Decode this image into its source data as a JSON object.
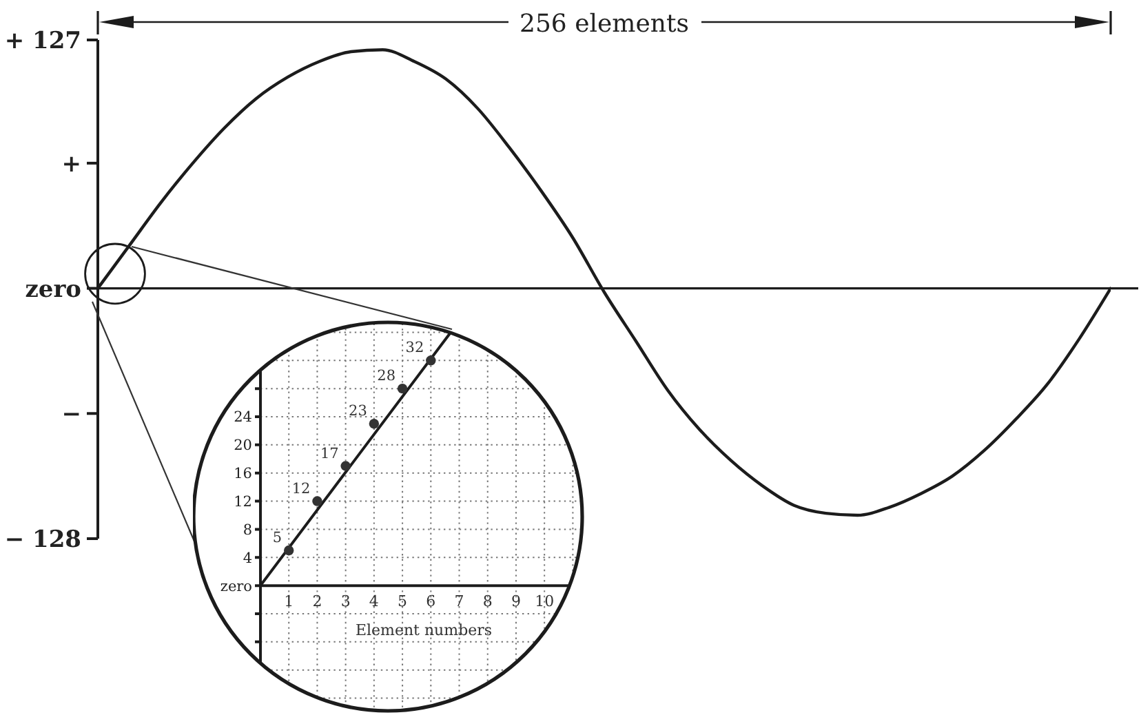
{
  "chart_data": [
    {
      "type": "line",
      "annotations": [
        "256 elements"
      ],
      "categories": [
        null,
        null,
        null,
        null,
        null,
        null,
        null,
        null,
        null,
        null,
        null,
        null,
        null,
        null,
        null,
        null,
        null,
        null,
        null,
        null,
        null,
        null,
        null,
        null,
        null,
        null,
        null,
        null,
        null,
        null,
        null,
        null,
        null
      ],
      "series": [
        {
          "color": "#1c1c1c",
          "values": [
            0,
            22,
            44,
            64,
            82,
            97,
            108,
            116,
            121,
            122,
            116,
            107,
            92,
            72,
            50,
            26,
            -2,
            -27,
            -52,
            -72,
            -88,
            -101,
            -111,
            -115,
            -116,
            -112,
            -105,
            -96,
            -83,
            -67,
            -49,
            -26,
            0
          ]
        }
      ],
      "ylim": [
        -128,
        127
      ],
      "yticks": [
        {
          "value": 127,
          "label": "+ 127"
        },
        {
          "value": 64,
          "label": "+"
        },
        {
          "value": 0,
          "label": "zero"
        },
        {
          "value": -64,
          "label": "−"
        },
        {
          "value": -128,
          "label": "− 128"
        }
      ],
      "ref_lines": [
        {
          "axis": "y",
          "value": 0,
          "color": "#1c1c1c"
        }
      ],
      "tick_labels": "y"
    },
    {
      "type": "line",
      "xlabel": "Element numbers",
      "xlim": [
        0,
        11.5
      ],
      "xticks": [
        1,
        2,
        3,
        4,
        5,
        6,
        7,
        8,
        9,
        10,
        {
          "value": 11,
          "label": null
        }
      ],
      "ylim": [
        -18,
        38
      ],
      "yticks": [
        {
          "value": -16,
          "label": null
        },
        {
          "value": -12,
          "label": null
        },
        {
          "value": -8,
          "label": null
        },
        {
          "value": -4,
          "label": null
        },
        {
          "value": 0,
          "label": "zero"
        },
        4,
        8,
        12,
        16,
        20,
        24,
        {
          "value": 28,
          "label": null
        },
        {
          "value": 32,
          "label": null
        },
        {
          "value": 36,
          "label": null
        }
      ],
      "grid": true,
      "series": [
        {
          "color": "#1c1c1c",
          "x": [
            0,
            6.7
          ],
          "values": [
            0,
            36
          ]
        },
        {
          "type": "scatter",
          "color": "#333333",
          "marker": "circle",
          "x": [
            1,
            2,
            3,
            4,
            5,
            6
          ],
          "values": [
            5,
            12,
            17,
            23,
            28,
            32
          ],
          "value_labels": [
            "5",
            "12",
            "17",
            "23",
            "28",
            "32"
          ]
        }
      ]
    }
  ]
}
